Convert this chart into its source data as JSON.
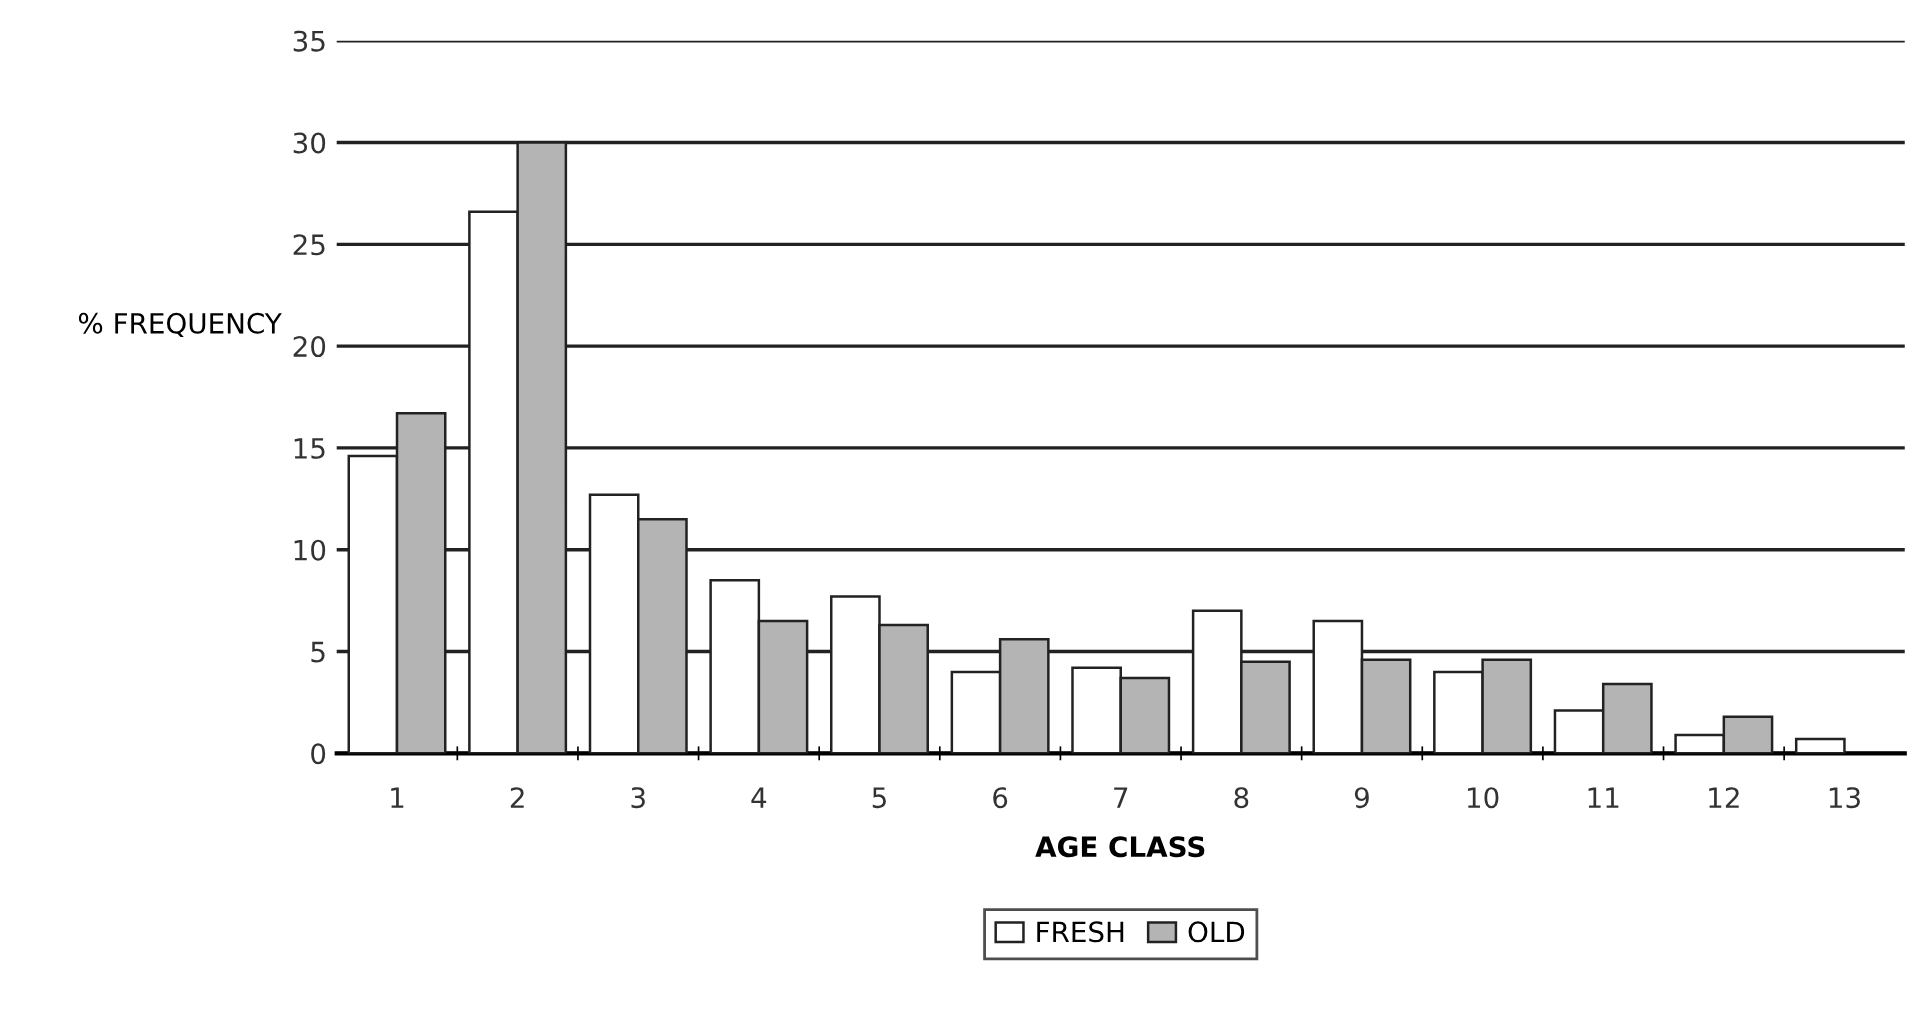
{
  "chart_data": {
    "type": "bar",
    "xlabel": "AGE CLASS",
    "ylabel": "% FREQUENCY",
    "categories": [
      "1",
      "2",
      "3",
      "4",
      "5",
      "6",
      "7",
      "8",
      "9",
      "10",
      "11",
      "12",
      "13"
    ],
    "series": [
      {
        "name": "FRESH",
        "color": "#ffffff",
        "values": [
          14.6,
          26.6,
          12.7,
          8.5,
          7.7,
          4.0,
          4.2,
          7.0,
          6.5,
          4.0,
          2.1,
          0.9,
          0.7
        ]
      },
      {
        "name": "OLD",
        "color": "#b4b4b4",
        "values": [
          16.7,
          30.0,
          11.5,
          6.5,
          6.3,
          5.6,
          3.7,
          4.5,
          4.6,
          4.6,
          3.4,
          1.8,
          null
        ]
      }
    ],
    "ylim": [
      0,
      35
    ],
    "yticks": [
      0,
      5,
      10,
      15,
      20,
      25,
      30,
      35
    ],
    "grid": "y",
    "legend": "bottom"
  }
}
